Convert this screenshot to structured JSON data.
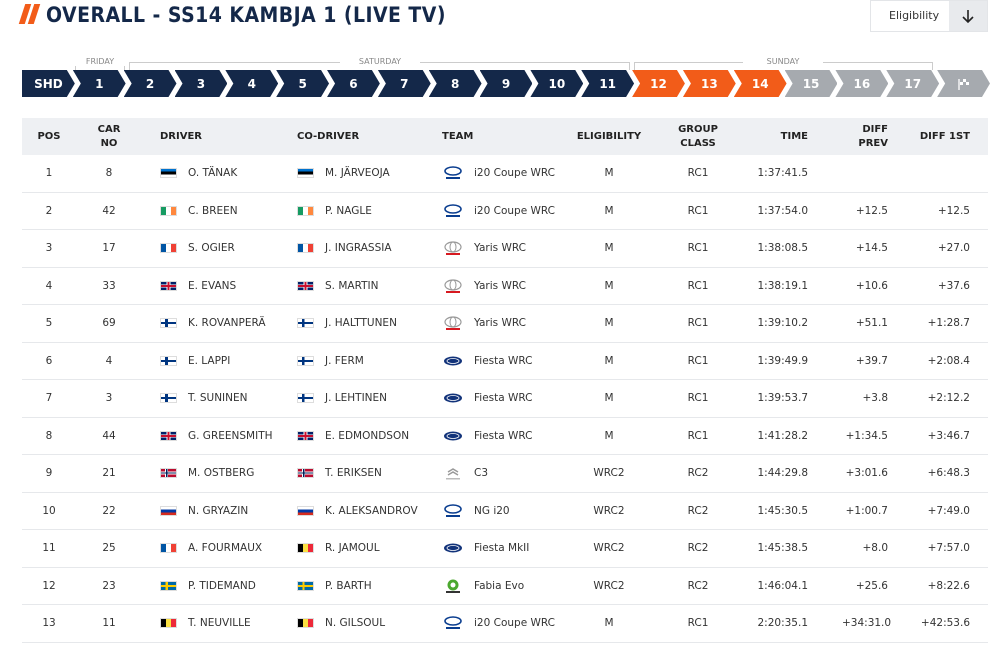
{
  "header": {
    "title": "OVERALL - SS14 KAMBJA 1 (LIVE TV)"
  },
  "filter": {
    "label": "Eligibility"
  },
  "days": [
    "FRIDAY",
    "SATURDAY",
    "SUNDAY"
  ],
  "stages": [
    {
      "label": "SHD",
      "color": "#142849"
    },
    {
      "label": "1",
      "color": "#142849"
    },
    {
      "label": "2",
      "color": "#142849"
    },
    {
      "label": "3",
      "color": "#142849"
    },
    {
      "label": "4",
      "color": "#142849"
    },
    {
      "label": "5",
      "color": "#142849"
    },
    {
      "label": "6",
      "color": "#142849"
    },
    {
      "label": "7",
      "color": "#142849"
    },
    {
      "label": "8",
      "color": "#142849"
    },
    {
      "label": "9",
      "color": "#142849"
    },
    {
      "label": "10",
      "color": "#142849"
    },
    {
      "label": "11",
      "color": "#142849"
    },
    {
      "label": "12",
      "color": "#f25c19"
    },
    {
      "label": "13",
      "color": "#f25c19"
    },
    {
      "label": "14",
      "color": "#f25c19"
    },
    {
      "label": "15",
      "color": "#a6aaaf"
    },
    {
      "label": "16",
      "color": "#a6aaaf"
    },
    {
      "label": "17",
      "color": "#a6aaaf"
    },
    {
      "color": "#a6aaaf"
    }
  ],
  "table": {
    "columns": [
      "POS",
      "CAR NO",
      "DRIVER",
      "CO-DRIVER",
      "TEAM",
      "ELIGIBILITY",
      "GROUP CLASS",
      "TIME",
      "DIFF PREV",
      "DIFF 1ST"
    ],
    "rows": [
      [
        "1",
        "8",
        "O. TÄNAK",
        "M. JÄRVEOJA",
        "i20 Coupe WRC",
        "M",
        "RC1",
        "1:37:41.5",
        null,
        null
      ],
      [
        "2",
        "42",
        "C. BREEN",
        "P. NAGLE",
        "i20 Coupe WRC",
        "M",
        "RC1",
        "1:37:54.0",
        "+12.5",
        "+12.5"
      ],
      [
        "3",
        "17",
        "S. OGIER",
        "J. INGRASSIA",
        "Yaris WRC",
        "M",
        "RC1",
        "1:38:08.5",
        "+14.5",
        "+27.0"
      ],
      [
        "4",
        "33",
        "E. EVANS",
        "S. MARTIN",
        "Yaris WRC",
        "M",
        "RC1",
        "1:38:19.1",
        "+10.6",
        "+37.6"
      ],
      [
        "5",
        "69",
        "K. ROVANPERÄ",
        "J. HALTTUNEN",
        "Yaris WRC",
        "M",
        "RC1",
        "1:39:10.2",
        "+51.1",
        "+1:28.7"
      ],
      [
        "6",
        "4",
        "E. LAPPI",
        "J. FERM",
        "Fiesta WRC",
        "M",
        "RC1",
        "1:39:49.9",
        "+39.7",
        "+2:08.4"
      ],
      [
        "7",
        "3",
        "T. SUNINEN",
        "J. LEHTINEN",
        "Fiesta WRC",
        "M",
        "RC1",
        "1:39:53.7",
        "+3.8",
        "+2:12.2"
      ],
      [
        "8",
        "44",
        "G. GREENSMITH",
        "E. EDMONDSON",
        "Fiesta WRC",
        "M",
        "RC1",
        "1:41:28.2",
        "+1:34.5",
        "+3:46.7"
      ],
      [
        "9",
        "21",
        "M. OSTBERG",
        "T. ERIKSEN",
        "C3",
        "WRC2",
        "RC2",
        "1:44:29.8",
        "+3:01.6",
        "+6:48.3"
      ],
      [
        "10",
        "22",
        "N. GRYAZIN",
        "K. ALEKSANDROV",
        "NG i20",
        "WRC2",
        "RC2",
        "1:45:30.5",
        "+1:00.7",
        "+7:49.0"
      ],
      [
        "11",
        "25",
        "A. FOURMAUX",
        "R. JAMOUL",
        "Fiesta MkII",
        "WRC2",
        "RC2",
        "1:45:38.5",
        "+8.0",
        "+7:57.0"
      ],
      [
        "12",
        "23",
        "P. TIDEMAND",
        "P. BARTH",
        "Fabia Evo",
        "WRC2",
        "RC2",
        "1:46:04.1",
        "+25.6",
        "+8:22.6"
      ],
      [
        "13",
        "11",
        "T. NEUVILLE",
        "N. GILSOUL",
        "i20 Coupe WRC",
        "M",
        "RC1",
        "2:20:35.1",
        "+34:31.0",
        "+42:53.6"
      ]
    ]
  }
}
